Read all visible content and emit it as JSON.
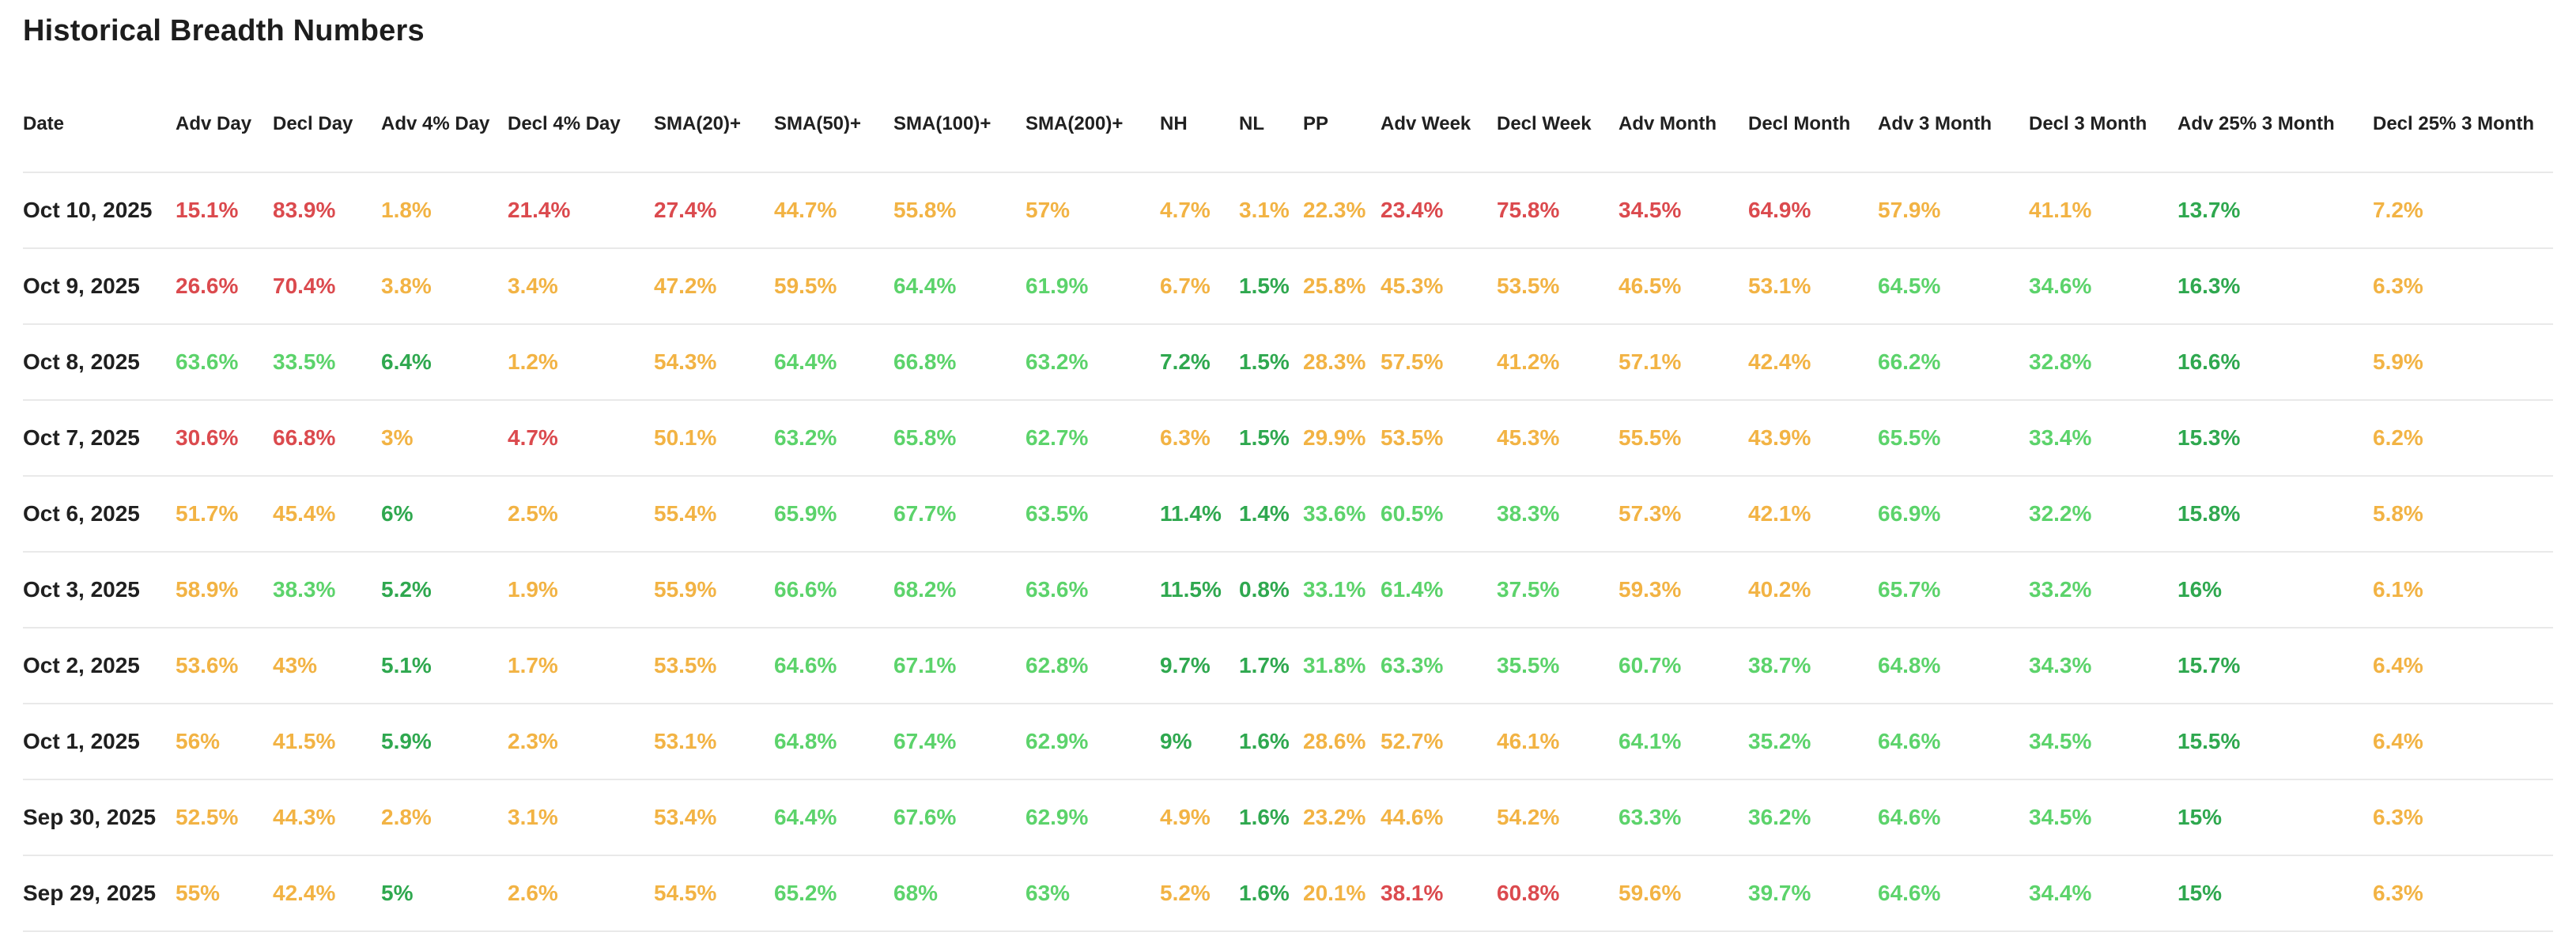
{
  "page": {
    "title": "Historical Breadth Numbers"
  },
  "palette": {
    "red": "#DB4A4E",
    "orange": "#F2B344",
    "green": "#5CD36B",
    "dark_green": "#2FA84F",
    "text": "#202020",
    "divider": "#E9E9E9",
    "background": "#FFFFFF"
  },
  "table": {
    "columns": [
      "Date",
      "Adv Day",
      "Decl Day",
      "Adv 4% Day",
      "Decl 4% Day",
      "SMA(20)+",
      "SMA(50)+",
      "SMA(100)+",
      "SMA(200)+",
      "NH",
      "NL",
      "PP",
      "Adv Week",
      "Decl Week",
      "Adv Month",
      "Decl Month",
      "Adv 3 Month",
      "Decl 3 Month",
      "Adv 25% 3 Month",
      "Decl 25% 3 Month"
    ],
    "rows": [
      {
        "date": "Oct 10, 2025",
        "values": [
          "15.1%",
          "83.9%",
          "1.8%",
          "21.4%",
          "27.4%",
          "44.7%",
          "55.8%",
          "57%",
          "4.7%",
          "3.1%",
          "22.3%",
          "23.4%",
          "75.8%",
          "34.5%",
          "64.9%",
          "57.9%",
          "41.1%",
          "13.7%",
          "7.2%"
        ],
        "colors": [
          "red",
          "red",
          "orange",
          "red",
          "red",
          "orange",
          "orange",
          "orange",
          "orange",
          "orange",
          "orange",
          "red",
          "red",
          "red",
          "red",
          "orange",
          "orange",
          "dark_green",
          "orange"
        ]
      },
      {
        "date": "Oct 9, 2025",
        "values": [
          "26.6%",
          "70.4%",
          "3.8%",
          "3.4%",
          "47.2%",
          "59.5%",
          "64.4%",
          "61.9%",
          "6.7%",
          "1.5%",
          "25.8%",
          "45.3%",
          "53.5%",
          "46.5%",
          "53.1%",
          "64.5%",
          "34.6%",
          "16.3%",
          "6.3%"
        ],
        "colors": [
          "red",
          "red",
          "orange",
          "orange",
          "orange",
          "orange",
          "green",
          "green",
          "orange",
          "dark_green",
          "orange",
          "orange",
          "orange",
          "orange",
          "orange",
          "green",
          "green",
          "dark_green",
          "orange"
        ]
      },
      {
        "date": "Oct 8, 2025",
        "values": [
          "63.6%",
          "33.5%",
          "6.4%",
          "1.2%",
          "54.3%",
          "64.4%",
          "66.8%",
          "63.2%",
          "7.2%",
          "1.5%",
          "28.3%",
          "57.5%",
          "41.2%",
          "57.1%",
          "42.4%",
          "66.2%",
          "32.8%",
          "16.6%",
          "5.9%"
        ],
        "colors": [
          "green",
          "green",
          "dark_green",
          "orange",
          "orange",
          "green",
          "green",
          "green",
          "dark_green",
          "dark_green",
          "orange",
          "orange",
          "orange",
          "orange",
          "orange",
          "green",
          "green",
          "dark_green",
          "orange"
        ]
      },
      {
        "date": "Oct 7, 2025",
        "values": [
          "30.6%",
          "66.8%",
          "3%",
          "4.7%",
          "50.1%",
          "63.2%",
          "65.8%",
          "62.7%",
          "6.3%",
          "1.5%",
          "29.9%",
          "53.5%",
          "45.3%",
          "55.5%",
          "43.9%",
          "65.5%",
          "33.4%",
          "15.3%",
          "6.2%"
        ],
        "colors": [
          "red",
          "red",
          "orange",
          "red",
          "orange",
          "green",
          "green",
          "green",
          "orange",
          "dark_green",
          "orange",
          "orange",
          "orange",
          "orange",
          "orange",
          "green",
          "green",
          "dark_green",
          "orange"
        ]
      },
      {
        "date": "Oct 6, 2025",
        "values": [
          "51.7%",
          "45.4%",
          "6%",
          "2.5%",
          "55.4%",
          "65.9%",
          "67.7%",
          "63.5%",
          "11.4%",
          "1.4%",
          "33.6%",
          "60.5%",
          "38.3%",
          "57.3%",
          "42.1%",
          "66.9%",
          "32.2%",
          "15.8%",
          "5.8%"
        ],
        "colors": [
          "orange",
          "orange",
          "dark_green",
          "orange",
          "orange",
          "green",
          "green",
          "green",
          "dark_green",
          "dark_green",
          "green",
          "green",
          "green",
          "orange",
          "orange",
          "green",
          "green",
          "dark_green",
          "orange"
        ]
      },
      {
        "date": "Oct 3, 2025",
        "values": [
          "58.9%",
          "38.3%",
          "5.2%",
          "1.9%",
          "55.9%",
          "66.6%",
          "68.2%",
          "63.6%",
          "11.5%",
          "0.8%",
          "33.1%",
          "61.4%",
          "37.5%",
          "59.3%",
          "40.2%",
          "65.7%",
          "33.2%",
          "16%",
          "6.1%"
        ],
        "colors": [
          "orange",
          "green",
          "dark_green",
          "orange",
          "orange",
          "green",
          "green",
          "green",
          "dark_green",
          "dark_green",
          "green",
          "green",
          "green",
          "orange",
          "orange",
          "green",
          "green",
          "dark_green",
          "orange"
        ]
      },
      {
        "date": "Oct 2, 2025",
        "values": [
          "53.6%",
          "43%",
          "5.1%",
          "1.7%",
          "53.5%",
          "64.6%",
          "67.1%",
          "62.8%",
          "9.7%",
          "1.7%",
          "31.8%",
          "63.3%",
          "35.5%",
          "60.7%",
          "38.7%",
          "64.8%",
          "34.3%",
          "15.7%",
          "6.4%"
        ],
        "colors": [
          "orange",
          "orange",
          "dark_green",
          "orange",
          "orange",
          "green",
          "green",
          "green",
          "dark_green",
          "dark_green",
          "green",
          "green",
          "green",
          "green",
          "green",
          "green",
          "green",
          "dark_green",
          "orange"
        ]
      },
      {
        "date": "Oct 1, 2025",
        "values": [
          "56%",
          "41.5%",
          "5.9%",
          "2.3%",
          "53.1%",
          "64.8%",
          "67.4%",
          "62.9%",
          "9%",
          "1.6%",
          "28.6%",
          "52.7%",
          "46.1%",
          "64.1%",
          "35.2%",
          "64.6%",
          "34.5%",
          "15.5%",
          "6.4%"
        ],
        "colors": [
          "orange",
          "orange",
          "dark_green",
          "orange",
          "orange",
          "green",
          "green",
          "green",
          "dark_green",
          "dark_green",
          "orange",
          "orange",
          "orange",
          "green",
          "green",
          "green",
          "green",
          "dark_green",
          "orange"
        ]
      },
      {
        "date": "Sep 30, 2025",
        "values": [
          "52.5%",
          "44.3%",
          "2.8%",
          "3.1%",
          "53.4%",
          "64.4%",
          "67.6%",
          "62.9%",
          "4.9%",
          "1.6%",
          "23.2%",
          "44.6%",
          "54.2%",
          "63.3%",
          "36.2%",
          "64.6%",
          "34.5%",
          "15%",
          "6.3%"
        ],
        "colors": [
          "orange",
          "orange",
          "orange",
          "orange",
          "orange",
          "green",
          "green",
          "green",
          "orange",
          "dark_green",
          "orange",
          "orange",
          "orange",
          "green",
          "green",
          "green",
          "green",
          "dark_green",
          "orange"
        ]
      },
      {
        "date": "Sep 29, 2025",
        "values": [
          "55%",
          "42.4%",
          "5%",
          "2.6%",
          "54.5%",
          "65.2%",
          "68%",
          "63%",
          "5.2%",
          "1.6%",
          "20.1%",
          "38.1%",
          "60.8%",
          "59.6%",
          "39.7%",
          "64.6%",
          "34.4%",
          "15%",
          "6.3%"
        ],
        "colors": [
          "orange",
          "orange",
          "dark_green",
          "orange",
          "orange",
          "green",
          "green",
          "green",
          "orange",
          "dark_green",
          "orange",
          "red",
          "red",
          "orange",
          "green",
          "green",
          "green",
          "dark_green",
          "orange"
        ]
      }
    ]
  }
}
